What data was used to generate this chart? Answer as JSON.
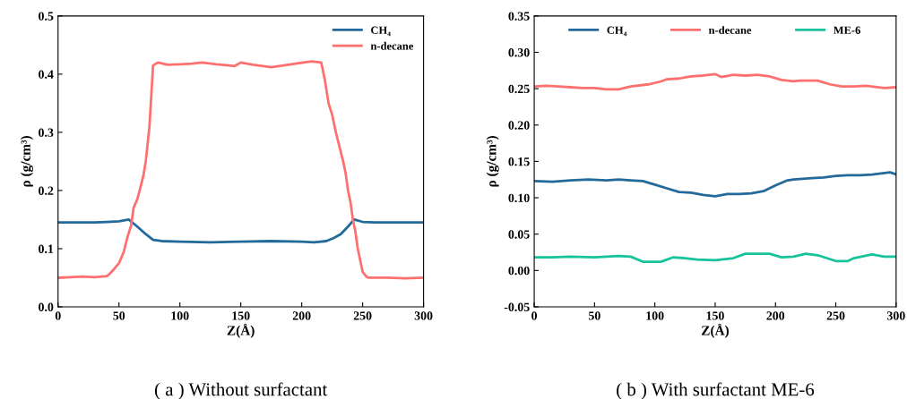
{
  "chart_data": [
    {
      "type": "line",
      "xlabel": "Z(Å)",
      "ylabel": "ρ (g/cm³)",
      "annotations": [
        "( a ) Without surfactant"
      ],
      "legend": "top right",
      "grid": false,
      "xlim": [
        0,
        300
      ],
      "xticks": [
        0,
        50,
        100,
        150,
        200,
        250,
        300
      ],
      "ylim": [
        0,
        0.5
      ],
      "yticks": [
        {
          "value": 0,
          "label": "0.0"
        },
        {
          "value": 0.1,
          "label": "0.1"
        },
        {
          "value": 0.2,
          "label": "0.2"
        },
        {
          "value": 0.3,
          "label": "0.3"
        },
        {
          "value": 0.4,
          "label": "0.4"
        },
        {
          "value": 0.5,
          "label": "0.5"
        }
      ],
      "series": [
        {
          "name": "CH₄",
          "color": "#236a9b",
          "x": [
            0,
            10,
            20,
            30,
            40,
            50,
            58,
            65,
            72,
            78,
            85,
            100,
            125,
            150,
            175,
            200,
            210,
            220,
            226,
            232,
            238,
            243,
            250,
            260,
            280,
            300
          ],
          "values": [
            0.145,
            0.145,
            0.145,
            0.145,
            0.146,
            0.147,
            0.15,
            0.138,
            0.125,
            0.115,
            0.113,
            0.112,
            0.111,
            0.112,
            0.113,
            0.112,
            0.111,
            0.113,
            0.118,
            0.125,
            0.138,
            0.15,
            0.146,
            0.145,
            0.145,
            0.145
          ]
        },
        {
          "name": "n-decane",
          "color": "#fe7070",
          "x": [
            0,
            10,
            20,
            30,
            40,
            42,
            46,
            50,
            54,
            57,
            60,
            62,
            65,
            67,
            70,
            72,
            75,
            78,
            82,
            90,
            100,
            110,
            118,
            130,
            140,
            145,
            150,
            160,
            175,
            185,
            195,
            208,
            216,
            219,
            222,
            225,
            228,
            231,
            234,
            236,
            238,
            240,
            242,
            244,
            246,
            248,
            250,
            253,
            255,
            270,
            285,
            300
          ],
          "values": [
            0.05,
            0.051,
            0.052,
            0.051,
            0.053,
            0.056,
            0.065,
            0.075,
            0.095,
            0.12,
            0.14,
            0.17,
            0.185,
            0.2,
            0.225,
            0.25,
            0.31,
            0.415,
            0.42,
            0.416,
            0.417,
            0.418,
            0.42,
            0.417,
            0.415,
            0.414,
            0.42,
            0.416,
            0.412,
            0.415,
            0.418,
            0.422,
            0.42,
            0.39,
            0.35,
            0.33,
            0.3,
            0.275,
            0.25,
            0.23,
            0.2,
            0.18,
            0.15,
            0.13,
            0.1,
            0.08,
            0.06,
            0.052,
            0.05,
            0.05,
            0.049,
            0.05
          ]
        }
      ]
    },
    {
      "type": "line",
      "xlabel": "Z(Å)",
      "ylabel": "ρ (g/cm³)",
      "annotations": [
        "( b ) With surfactant ME-6"
      ],
      "legend": "top",
      "grid": false,
      "xlim": [
        0,
        300
      ],
      "xticks": [
        0,
        50,
        100,
        150,
        200,
        250,
        300
      ],
      "ylim": [
        -0.05,
        0.35
      ],
      "yticks": [
        {
          "value": -0.05,
          "label": "-0.05"
        },
        {
          "value": 0,
          "label": "0.00"
        },
        {
          "value": 0.05,
          "label": "0.05"
        },
        {
          "value": 0.1,
          "label": "0.10"
        },
        {
          "value": 0.15,
          "label": "0.15"
        },
        {
          "value": 0.2,
          "label": "0.20"
        },
        {
          "value": 0.25,
          "label": "0.25"
        },
        {
          "value": 0.3,
          "label": "0.30"
        },
        {
          "value": 0.35,
          "label": "0.35"
        }
      ],
      "series": [
        {
          "name": "CH₄",
          "color": "#236a9b",
          "x": [
            0,
            15,
            30,
            45,
            60,
            70,
            80,
            90,
            100,
            110,
            120,
            130,
            140,
            150,
            160,
            170,
            180,
            190,
            200,
            210,
            215,
            230,
            240,
            250,
            260,
            270,
            280,
            295,
            300
          ],
          "values": [
            0.123,
            0.122,
            0.124,
            0.125,
            0.124,
            0.125,
            0.124,
            0.123,
            0.118,
            0.113,
            0.108,
            0.107,
            0.104,
            0.102,
            0.105,
            0.105,
            0.106,
            0.109,
            0.117,
            0.124,
            0.125,
            0.127,
            0.128,
            0.13,
            0.131,
            0.131,
            0.132,
            0.135,
            0.132
          ]
        },
        {
          "name": "n-decane",
          "color": "#fe7070",
          "x": [
            0,
            10,
            20,
            30,
            40,
            50,
            60,
            70,
            80,
            95,
            105,
            110,
            120,
            130,
            140,
            150,
            155,
            165,
            175,
            185,
            195,
            205,
            215,
            220,
            235,
            245,
            255,
            265,
            275,
            290,
            300
          ],
          "values": [
            0.253,
            0.254,
            0.253,
            0.252,
            0.251,
            0.251,
            0.249,
            0.249,
            0.253,
            0.256,
            0.26,
            0.263,
            0.264,
            0.267,
            0.268,
            0.27,
            0.266,
            0.269,
            0.268,
            0.269,
            0.267,
            0.262,
            0.26,
            0.261,
            0.261,
            0.256,
            0.253,
            0.253,
            0.254,
            0.251,
            0.252
          ]
        },
        {
          "name": "ME-6",
          "color": "#16c39a",
          "x": [
            0,
            15,
            30,
            50,
            60,
            70,
            80,
            90,
            105,
            115,
            125,
            135,
            150,
            165,
            175,
            195,
            205,
            215,
            225,
            235,
            250,
            260,
            265,
            280,
            290,
            300
          ],
          "values": [
            0.018,
            0.018,
            0.019,
            0.018,
            0.019,
            0.02,
            0.019,
            0.012,
            0.012,
            0.018,
            0.017,
            0.015,
            0.014,
            0.017,
            0.023,
            0.023,
            0.018,
            0.019,
            0.023,
            0.021,
            0.013,
            0.013,
            0.017,
            0.022,
            0.019,
            0.019
          ]
        }
      ]
    }
  ]
}
